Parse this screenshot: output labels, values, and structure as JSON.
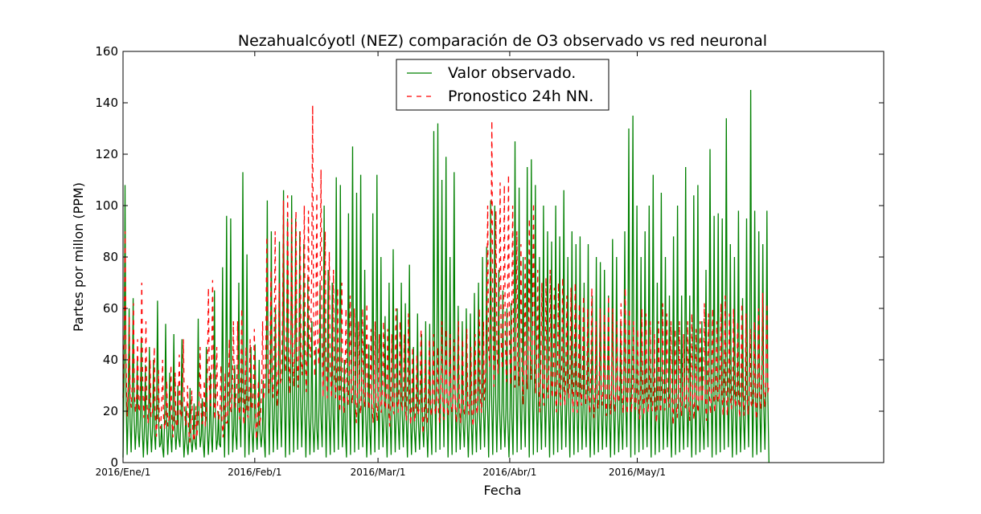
{
  "chart_data": {
    "type": "line",
    "title": "Nezahualcóyotl (NEZ) comparación de O3 observado vs red neuronal",
    "xlabel": "Fecha",
    "ylabel": "Partes por millon (PPM)",
    "ylim": [
      0,
      160
    ],
    "yticks": [
      0,
      20,
      40,
      60,
      80,
      100,
      120,
      140,
      160
    ],
    "xlim": [
      "2016-01-01",
      "2016-06-28"
    ],
    "xticks": [
      {
        "date": "2016-01-01",
        "label": "2016/Ene/1"
      },
      {
        "date": "2016-02-01",
        "label": "2016/Feb/1"
      },
      {
        "date": "2016-03-01",
        "label": "2016/Mar/1"
      },
      {
        "date": "2016-04-01",
        "label": "2016/Abr/1"
      },
      {
        "date": "2016-05-01",
        "label": "2016/May/1"
      }
    ],
    "legend_position": "top-center",
    "grid": false,
    "series": [
      {
        "name": "Valor observado.",
        "color": "#008000",
        "style": "solid",
        "x_start": "2016-01-01",
        "x_end": "2016-06-01",
        "daily_peaks": [
          108,
          60,
          64,
          40,
          49,
          38,
          45,
          40,
          63,
          15,
          54,
          35,
          50,
          30,
          48,
          22,
          29,
          23,
          56,
          25,
          45,
          35,
          67,
          20,
          76,
          96,
          95,
          38,
          70,
          113,
          81,
          45,
          46,
          40,
          32,
          102,
          90,
          60,
          86,
          106,
          95,
          104,
          95,
          90,
          85,
          72,
          55,
          45,
          70,
          100,
          75,
          70,
          111,
          108,
          40,
          97,
          123,
          105,
          112,
          75,
          46,
          97,
          112,
          80,
          57,
          70,
          83,
          60,
          70,
          62,
          77,
          45,
          58,
          50,
          55,
          54,
          129,
          132,
          110,
          119,
          80,
          113,
          61,
          55,
          60,
          58,
          66,
          70,
          80,
          84,
          102,
          100,
          75,
          67,
          60,
          62,
          125,
          107,
          80,
          115,
          118,
          108,
          80,
          100,
          90,
          86,
          100,
          88,
          106,
          80,
          90,
          85,
          88,
          70,
          85,
          65,
          80,
          78,
          75,
          65,
          87,
          80,
          55,
          90,
          130,
          135,
          100,
          80,
          90,
          100,
          112,
          70,
          105,
          80,
          65,
          88,
          100,
          65,
          115,
          65,
          104,
          108,
          55,
          75,
          122,
          96,
          97,
          95,
          134,
          85,
          80,
          98,
          64,
          95,
          145,
          98,
          90,
          85,
          98
        ]
      },
      {
        "name": "Pronostico 24h NN.",
        "color": "#ff0000",
        "style": "dashed",
        "x_start": "2016-01-01",
        "x_end": "2016-06-01",
        "daily_peaks": [
          90,
          57,
          62,
          48,
          70,
          55,
          40,
          45,
          36,
          40,
          32,
          38,
          35,
          42,
          48,
          30,
          28,
          22,
          45,
          32,
          68,
          71,
          45,
          38,
          35,
          48,
          55,
          55,
          60,
          45,
          48,
          52,
          32,
          55,
          88,
          75,
          90,
          70,
          102,
          104,
          95,
          98,
          90,
          100,
          98,
          139,
          105,
          114,
          90,
          82,
          75,
          68,
          70,
          60,
          65,
          60,
          55,
          60,
          62,
          52,
          55,
          50,
          55,
          52,
          50,
          60,
          55,
          50,
          58,
          45,
          42,
          52,
          40,
          48,
          50,
          45,
          55,
          52,
          50,
          48,
          55,
          48,
          52,
          45,
          50,
          60,
          55,
          100,
          133,
          98,
          109,
          108,
          112,
          100,
          90,
          85,
          80,
          95,
          101,
          75,
          70,
          72,
          75,
          68,
          70,
          72,
          65,
          68,
          70,
          62,
          65,
          60,
          68,
          55,
          60,
          58,
          65,
          60,
          55,
          62,
          68,
          60,
          55,
          52,
          60,
          58,
          55,
          50,
          55,
          62,
          58,
          55,
          52,
          55,
          50,
          55,
          58,
          52,
          55,
          62,
          58,
          60,
          55,
          62,
          65,
          58,
          60,
          55,
          62,
          58,
          52,
          55,
          60,
          66,
          62
        ]
      }
    ]
  }
}
